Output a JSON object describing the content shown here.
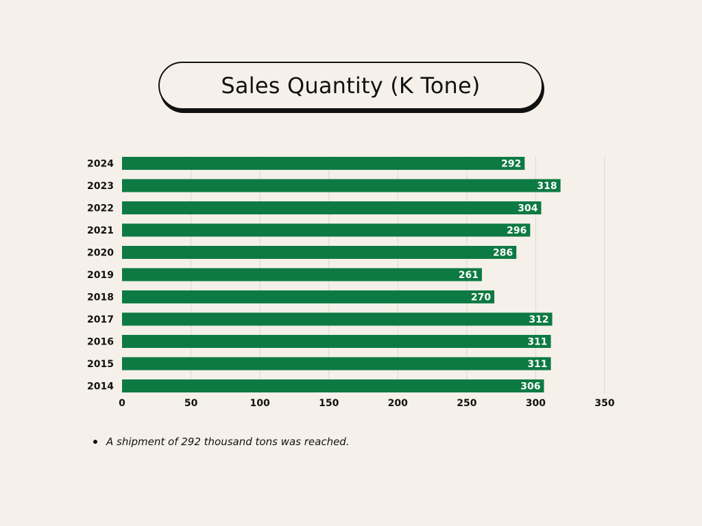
{
  "title": "Sales Quantity (K Tone)",
  "note": "A shipment of 292 thousand tons was reached.",
  "chart_data": {
    "type": "bar",
    "orientation": "horizontal",
    "title": "Sales Quantity (K Tone)",
    "categories": [
      "2024",
      "2023",
      "2022",
      "2021",
      "2020",
      "2019",
      "2018",
      "2017",
      "2016",
      "2015",
      "2014"
    ],
    "values": [
      292,
      318,
      304,
      296,
      286,
      261,
      270,
      312,
      311,
      311,
      306
    ],
    "xlim": [
      0,
      350
    ],
    "xticks": [
      0,
      50,
      100,
      150,
      200,
      250,
      300,
      350
    ],
    "grid": "vertical",
    "data_labels": true,
    "bar_color": "#0e7a43"
  }
}
